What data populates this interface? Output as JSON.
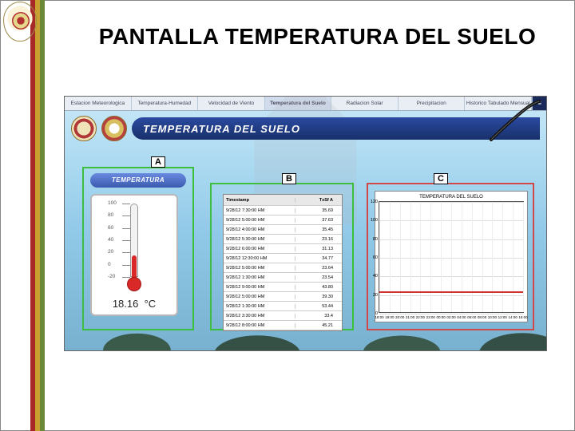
{
  "slide_title": "PANTALLA TEMPERATURA DEL SUELO",
  "tabs": {
    "items": [
      "Estacion Meteorologica",
      "Temperatura-Humedad",
      "Velocidad de Viento",
      "Temperatura del Suelo",
      "Radiacion Solar",
      "Precipitacion",
      "Historico Tabulado Mensual"
    ],
    "active_index": 3,
    "corner_icon": "≡"
  },
  "header": {
    "title": "TEMPERATURA DEL SUELO"
  },
  "labels": {
    "a": "A",
    "b": "B",
    "c": "C"
  },
  "zones": {
    "a_border": "#3cbf3c",
    "b_border": "#3cbf3c",
    "c_border": "#d04848"
  },
  "thermometer": {
    "panel_title": "TEMPERATURA",
    "scale_min": -20,
    "scale_max": 100,
    "ticks": [
      100,
      80,
      60,
      40,
      20,
      0,
      -20
    ],
    "current_value": 18.16,
    "unit": "°C",
    "fill_color": "#d82828"
  },
  "table": {
    "columns": [
      "Timestamp",
      "TxSf  A"
    ],
    "rows": [
      [
        "9/28/12 7:30:00 HM",
        "35.69"
      ],
      [
        "9/28/12 5:00:00 HM",
        "37.63"
      ],
      [
        "9/28/12 4:00:00 HM",
        "35.45"
      ],
      [
        "9/28/12 5:30:00 HM",
        "23.16"
      ],
      [
        "9/28/12 6:00:00 HM",
        "31.13"
      ],
      [
        "9/28/12 12:30:00 HM",
        "34.77"
      ],
      [
        "9/28/12 5:00:00 HM",
        "23.64"
      ],
      [
        "9/28/12 1:30:00 HM",
        "23.54"
      ],
      [
        "9/28/12 9:00:00 HM",
        "43.80"
      ],
      [
        "9/28/12 5:00:00 HM",
        "39.30"
      ],
      [
        "9/28/12 1:30:00 HM",
        "53.44"
      ],
      [
        "9/28/12 3:30:00 HM",
        "33.4"
      ],
      [
        "9/28/12 8:00:00 HM",
        "45.21"
      ]
    ]
  },
  "chart": {
    "title": "TEMPERATURA DEL SUELO",
    "type": "line",
    "ylim": [
      0,
      120
    ],
    "ytick_step": 20,
    "yticks": [
      0,
      20,
      40,
      60,
      80,
      100,
      120
    ],
    "xticks": [
      "18:00",
      "19:00",
      "20:00",
      "21:00",
      "22:00",
      "23:00",
      "00:00",
      "02:00",
      "04:00",
      "06:00",
      "08:00",
      "10:00",
      "12:00",
      "14:00",
      "16:00"
    ],
    "series_value": 23,
    "line_color": "#d03030",
    "grid_color": "#dddddd",
    "background_color": "#ffffff",
    "border_color": "#555555"
  },
  "colors": {
    "header_bar_top": "#2a4aa0",
    "header_bar_bottom": "#18306a",
    "sky_top": "#c8e8f8",
    "sky_bottom": "#78b0d0",
    "stripe_red": "#a82828",
    "stripe_yellow": "#c8a030",
    "stripe_green": "#6a8a3a"
  }
}
